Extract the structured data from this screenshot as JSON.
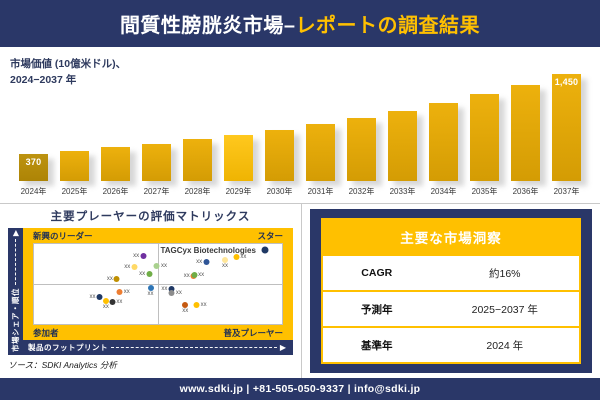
{
  "header": {
    "title_main": "間質性膀胱炎市場–",
    "title_accent": "レポートの調査結果"
  },
  "chart": {
    "subtitle_line1": "市場価値 (10億米ドル)、",
    "subtitle_line2": "2024−2037 年",
    "first_bar_label": "370",
    "last_bar_label": "1,450"
  },
  "chart_data": {
    "type": "bar",
    "title": "市場価値 (10億米ドル)、2024−2037 年",
    "categories": [
      "2024年",
      "2025年",
      "2026年",
      "2027年",
      "2028年",
      "2029年",
      "2030年",
      "2031年",
      "2032年",
      "2033年",
      "2034年",
      "2035年",
      "2036年",
      "2037年"
    ],
    "values": [
      370,
      411,
      456,
      507,
      563,
      625,
      694,
      771,
      857,
      952,
      1057,
      1175,
      1305,
      1450
    ],
    "labeled_values": {
      "2024年": "370",
      "2037年": "1,450"
    },
    "values_note": "only first and last bars carry data labels; intermediate values estimated from bar heights",
    "ylim": [
      0,
      1500
    ],
    "grid": false,
    "legend": false,
    "bar_color": "#DEA50B",
    "first_bar_color": "#B58F0B",
    "highlight_bar": "2029年",
    "highlight_bar_color": "#FFC414"
  },
  "matrix": {
    "title": "主要プレーヤーの評価マトリックス",
    "quadrants": {
      "top_left": "新興のリーダー",
      "top_right": "スター",
      "bottom_left": "参加者",
      "bottom_right": "普及プレーヤー"
    },
    "x_axis": "製品のフットプリント",
    "y_axis": "市場シェア・順位",
    "company_label": "TAGCyx Biotechnologies",
    "point_label": "xx",
    "points": [
      {
        "x": 42.6,
        "y": 15,
        "c": "#7030A0",
        "p": "l"
      },
      {
        "x": 39,
        "y": 29,
        "c": "#FFD966",
        "p": "l"
      },
      {
        "x": 45,
        "y": 37,
        "c": "#70AD47",
        "p": "l"
      },
      {
        "x": 32,
        "y": 44,
        "c": "#BF8F00",
        "p": "l"
      },
      {
        "x": 25,
        "y": 66,
        "c": "#1F3864",
        "p": "l"
      },
      {
        "x": 29,
        "y": 75,
        "c": "#FFC000",
        "p": "b"
      },
      {
        "x": 33,
        "y": 72,
        "c": "#333333",
        "p": "r"
      },
      {
        "x": 36,
        "y": 60,
        "c": "#ED7D31",
        "p": "r"
      },
      {
        "x": 47,
        "y": 59,
        "c": "#2E75B6",
        "p": "b"
      },
      {
        "x": 54,
        "y": 56,
        "c": "#1F3864",
        "p": "l"
      },
      {
        "x": 57,
        "y": 61,
        "c": "#8C8C8C",
        "p": "r"
      },
      {
        "x": 51,
        "y": 27,
        "c": "#A9D18E",
        "p": "r"
      },
      {
        "x": 68,
        "y": 22,
        "c": "#2F5597",
        "p": "l"
      },
      {
        "x": 77,
        "y": 24,
        "c": "#FFE699",
        "p": "b"
      },
      {
        "x": 83,
        "y": 16,
        "c": "#FFC000",
        "p": "r"
      },
      {
        "x": 93,
        "y": 8,
        "c": "#1F3864",
        "p": "n",
        "big": true
      },
      {
        "x": 63,
        "y": 40,
        "c": "#ED7D31",
        "p": "l"
      },
      {
        "x": 66,
        "y": 39,
        "c": "#70AD47",
        "p": "r"
      },
      {
        "x": 61,
        "y": 80,
        "c": "#C55A11",
        "p": "b"
      },
      {
        "x": 67,
        "y": 76,
        "c": "#FFC000",
        "p": "r"
      }
    ]
  },
  "insights": {
    "title": "主要な市場洞察",
    "rows": [
      {
        "label": "CAGR",
        "value": "約16%"
      },
      {
        "label": "予測年",
        "value": "2025−2037 年"
      },
      {
        "label": "基準年",
        "value": "2024 年"
      }
    ]
  },
  "source": "ソース：SDKI Analytics 分析",
  "footer": "www.sdki.jp | +81-505-050-9337 | info@sdki.jp",
  "colors": {
    "navy": "#2A3768",
    "gold": "#FFC000",
    "divider_gray": "#C9C9C9"
  }
}
